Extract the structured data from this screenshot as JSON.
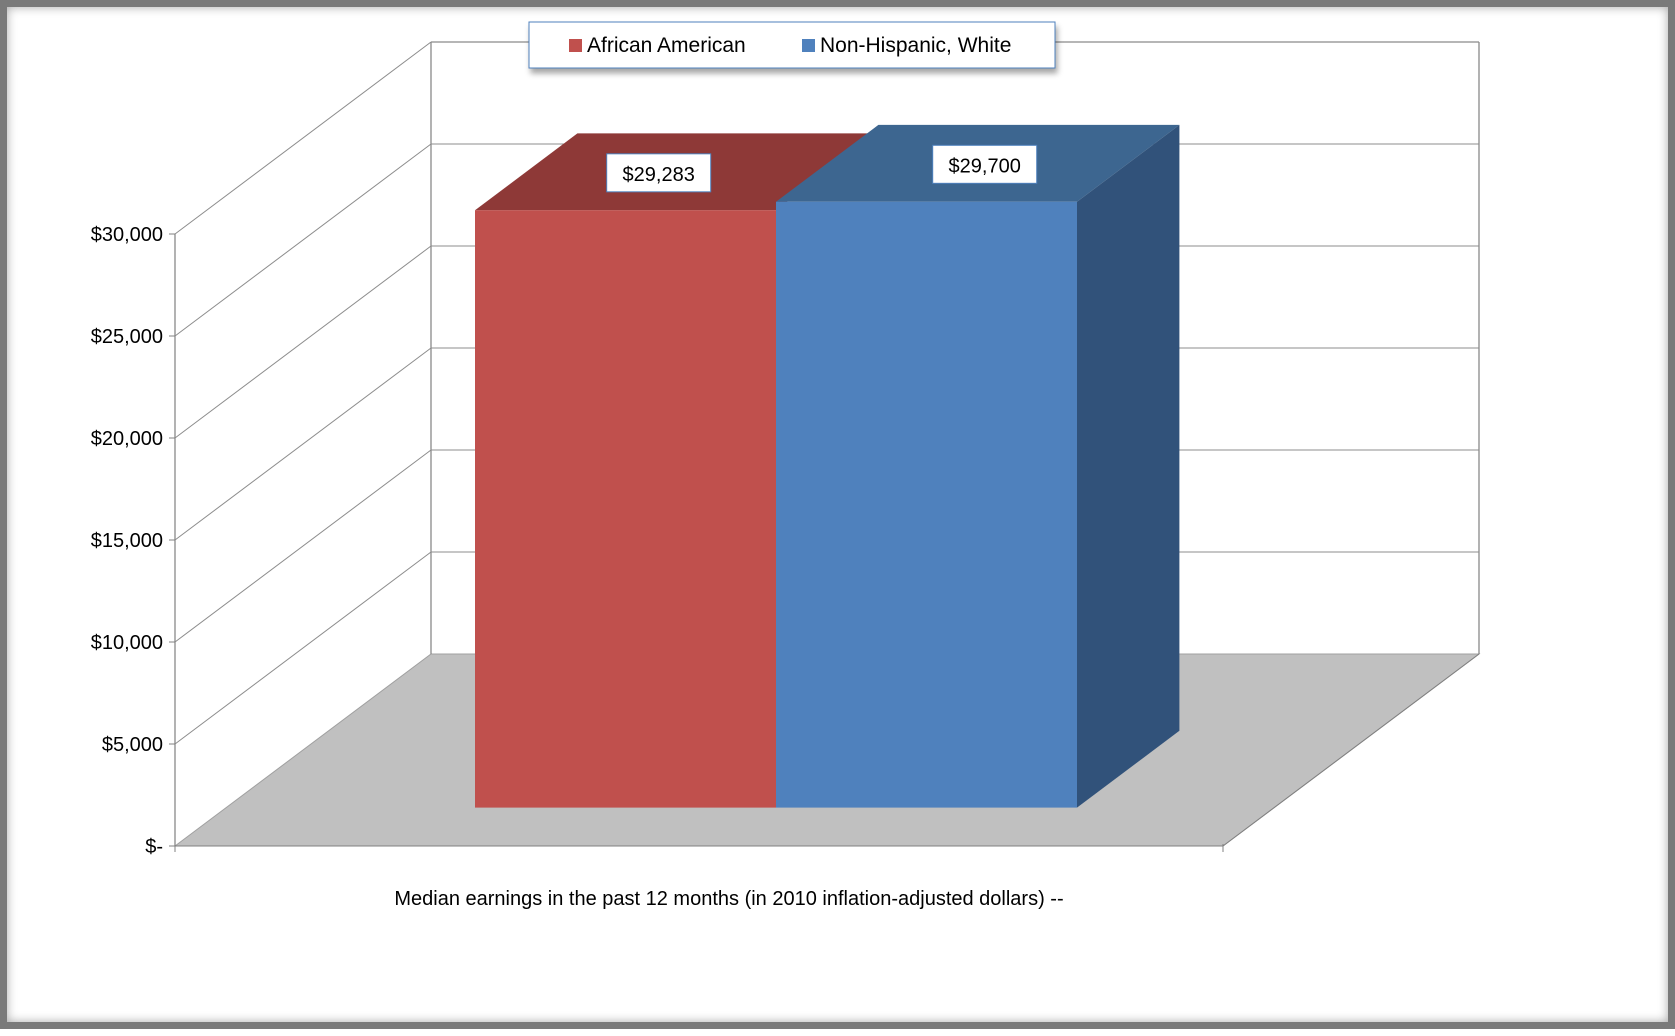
{
  "chart_data": {
    "type": "bar",
    "categories": [
      "Median earnings in the past 12 months (in 2010 inflation-adjusted dollars) --"
    ],
    "series": [
      {
        "name": "African American",
        "values": [
          29283
        ],
        "color": "#C0504D",
        "top_color": "#8E3937",
        "label": "$29,283"
      },
      {
        "name": "Non-Hispanic, White",
        "values": [
          29700
        ],
        "color": "#4F81BD",
        "top_color": "#3D6690",
        "side_color": "#31527A",
        "label": "$29,700"
      }
    ],
    "ylim": [
      0,
      30000
    ],
    "yticks": [
      0,
      5000,
      10000,
      15000,
      20000,
      25000,
      30000
    ],
    "ytick_labels": [
      "$-",
      "$5,000",
      "$10,000",
      "$15,000",
      "$20,000",
      "$25,000",
      "$30,000"
    ],
    "grid": true,
    "legend_position": "top",
    "floor_color": "#C0C0C0",
    "three_d": true
  }
}
